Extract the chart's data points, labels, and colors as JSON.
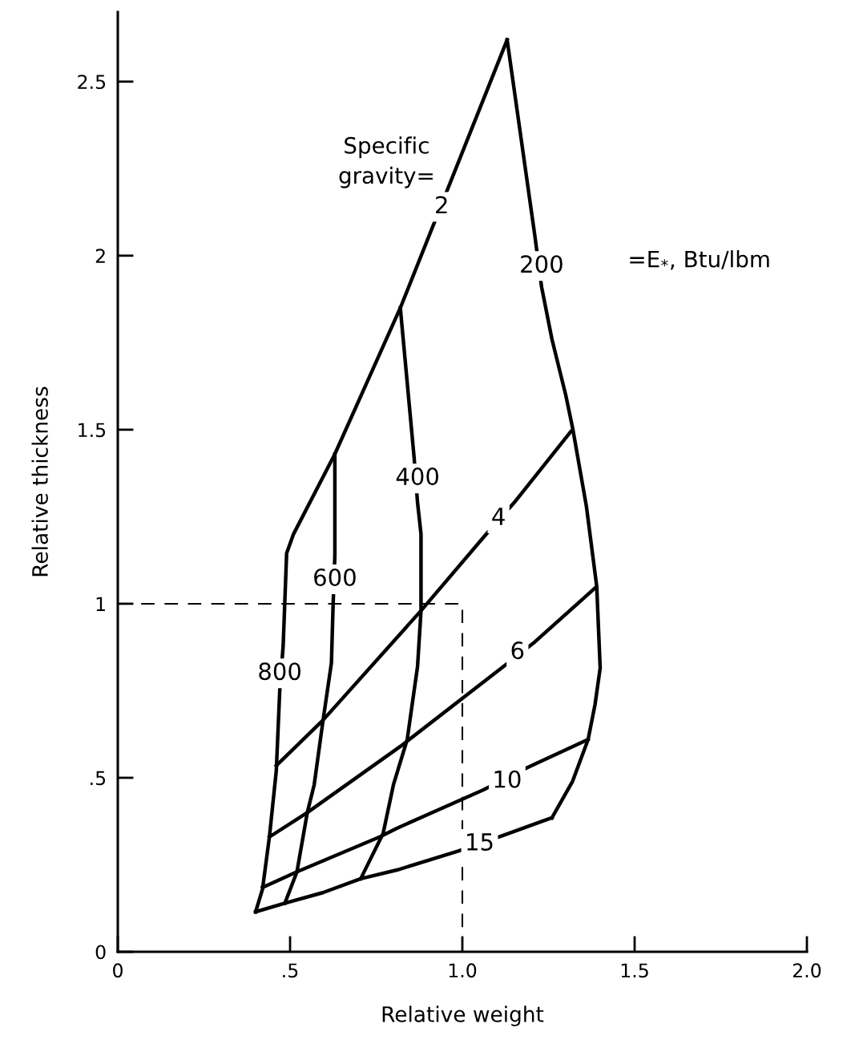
{
  "chart_data": {
    "type": "line",
    "xlabel": "Relative weight",
    "ylabel": "Relative thickness",
    "xlim": [
      0,
      2.0
    ],
    "ylim": [
      0,
      2.7
    ],
    "xticks": [
      0,
      {
        "value": 0.5,
        "label": ".5"
      },
      {
        "value": 1.0,
        "label": "1.0"
      },
      1.5,
      {
        "value": 2.0,
        "label": "2.0"
      }
    ],
    "yticks": [
      0,
      {
        "value": 0.5,
        "label": ".5"
      },
      1,
      1.5,
      2,
      2.5
    ],
    "grid": false,
    "legend": false,
    "marker": "none",
    "line_style": "solid",
    "series": [
      {
        "color": "#000000",
        "x": [
          0.4,
          0.42,
          0.44,
          0.46,
          0.47,
          0.48,
          0.49,
          0.51,
          0.63,
          0.82,
          1.13
        ],
        "values": [
          0.115,
          0.18,
          0.33,
          0.52,
          0.75,
          0.88,
          1.145,
          1.2,
          1.43,
          1.85,
          2.62
        ]
      },
      {
        "color": "#000000",
        "x": [
          1.13,
          1.21,
          1.23,
          1.26,
          1.3,
          1.32,
          1.36,
          1.39,
          1.4,
          1.385,
          1.365,
          1.32,
          1.26
        ],
        "values": [
          2.62,
          2.06,
          1.91,
          1.76,
          1.6,
          1.505,
          1.28,
          1.05,
          0.815,
          0.71,
          0.61,
          0.49,
          0.385
        ]
      },
      {
        "color": "#000000",
        "x": [
          0.4,
          0.485,
          0.595,
          0.705,
          0.81,
          0.99,
          1.12,
          1.245,
          1.26
        ],
        "values": [
          0.115,
          0.14,
          0.17,
          0.21,
          0.235,
          0.29,
          0.335,
          0.38,
          0.385
        ]
      },
      {
        "color": "#000000",
        "x": [
          0.63,
          0.63,
          0.625,
          0.62,
          0.595,
          0.57,
          0.55,
          0.52,
          0.485
        ],
        "values": [
          1.43,
          1.14,
          1.0,
          0.83,
          0.66,
          0.48,
          0.4,
          0.23,
          0.14
        ]
      },
      {
        "color": "#000000",
        "x": [
          0.82,
          0.86,
          0.87,
          0.88,
          0.88,
          0.87,
          0.84,
          0.8,
          0.77,
          0.705
        ],
        "values": [
          1.85,
          1.42,
          1.29,
          1.2,
          0.98,
          0.82,
          0.61,
          0.48,
          0.34,
          0.21
        ]
      },
      {
        "color": "#000000",
        "x": [
          0.46,
          0.595,
          0.88,
          1.065,
          1.15,
          1.315
        ],
        "values": [
          0.535,
          0.665,
          0.98,
          1.195,
          1.29,
          1.495
        ]
      },
      {
        "color": "#000000",
        "x": [
          0.44,
          0.55,
          0.82,
          1.12,
          1.21,
          1.385
        ],
        "values": [
          0.33,
          0.4,
          0.59,
          0.82,
          0.89,
          1.045
        ]
      },
      {
        "color": "#000000",
        "x": [
          0.42,
          0.52,
          0.76,
          0.81,
          1.06,
          1.19,
          1.365
        ],
        "values": [
          0.185,
          0.23,
          0.33,
          0.355,
          0.465,
          0.53,
          0.61
        ]
      },
      {
        "color": "#000000",
        "line_style": "dashed",
        "x": [
          0,
          1.0,
          1.0
        ],
        "values": [
          1.0,
          1.0,
          0
        ]
      }
    ],
    "annotations": [
      "Specific\ngravity=",
      "=E$_{*}$, Btu/lbm",
      {
        "text": "2",
        "x": 0.94,
        "y": 2.14
      },
      {
        "text": "200",
        "x": 1.23,
        "y": 1.97
      },
      {
        "text": "400",
        "x": 0.87,
        "y": 1.36
      },
      {
        "text": "600",
        "x": 0.63,
        "y": 1.07
      },
      {
        "text": "800",
        "x": 0.47,
        "y": 0.8
      },
      {
        "text": "4",
        "x": 1.105,
        "y": 1.245
      },
      {
        "text": "6",
        "x": 1.16,
        "y": 0.86
      },
      {
        "text": "10",
        "x": 1.13,
        "y": 0.49
      },
      {
        "text": "15",
        "x": 1.05,
        "y": 0.31
      }
    ]
  }
}
